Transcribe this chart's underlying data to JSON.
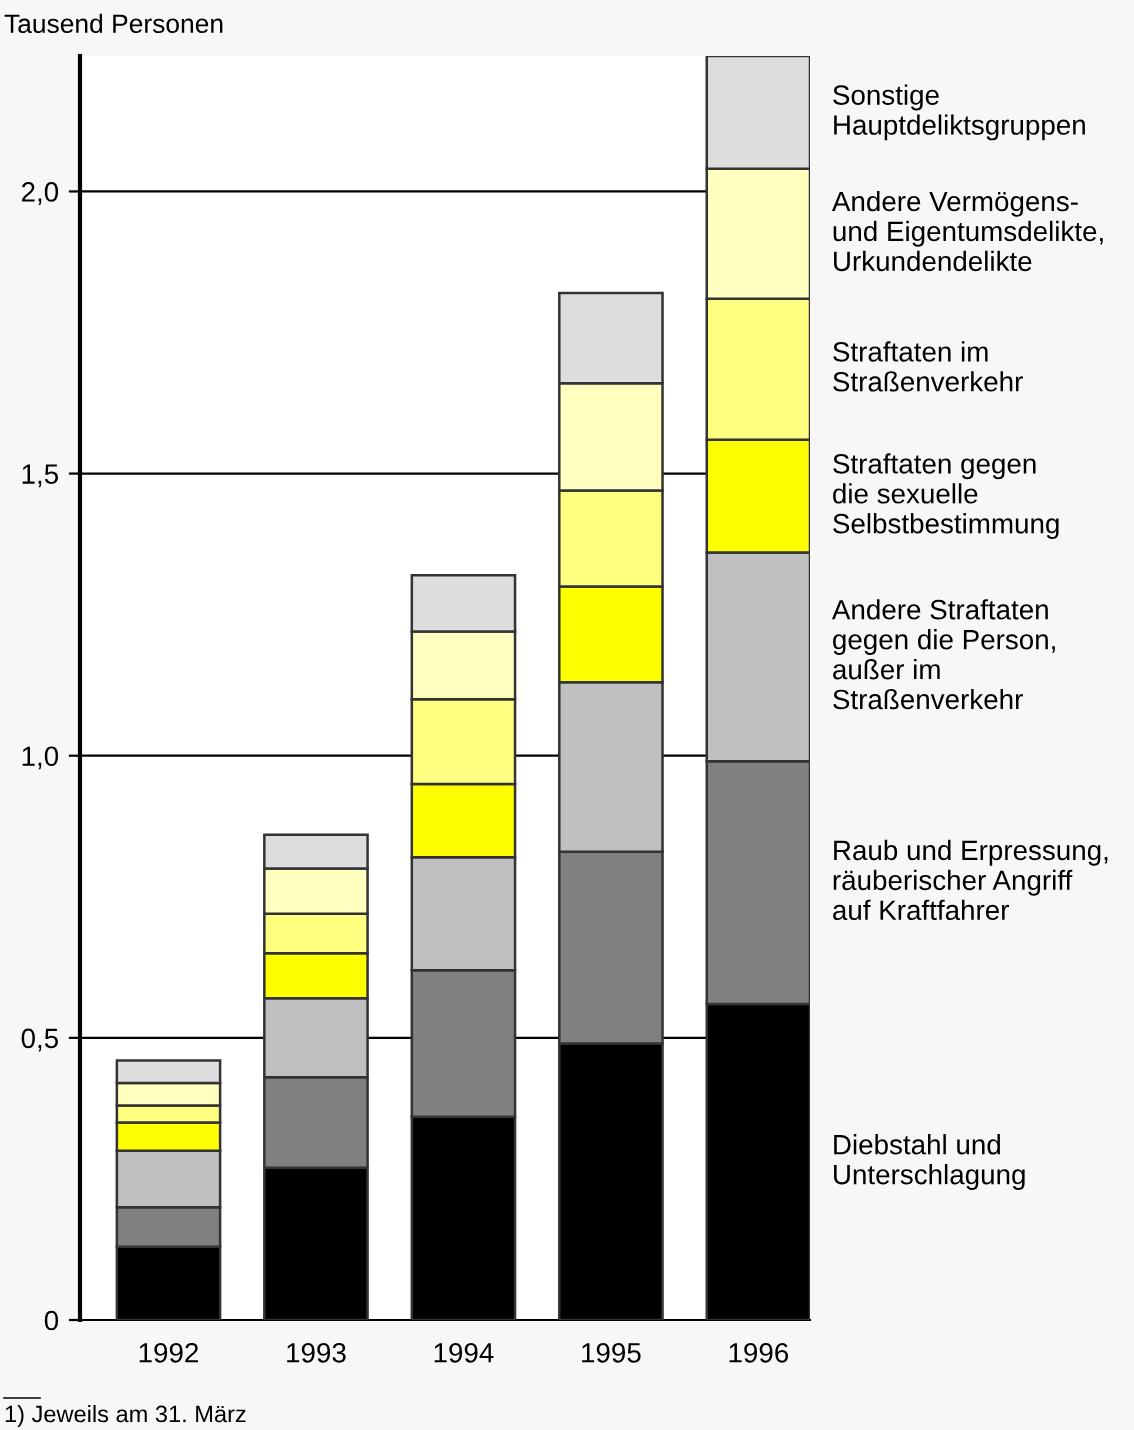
{
  "chart_data": {
    "type": "bar",
    "stacked": true,
    "ylabel": "Tausend Personen",
    "categories": [
      "1992",
      "1993",
      "1994",
      "1995",
      "1996"
    ],
    "series": [
      {
        "name": "Diebstahl und\nUnterschlagung",
        "color": "#000000",
        "values": [
          0.13,
          0.27,
          0.36,
          0.49,
          0.56
        ]
      },
      {
        "name": "Raub und Erpressung,\nräuberischer Angriff\nauf Kraftfahrer",
        "color": "#808080",
        "values": [
          0.07,
          0.16,
          0.26,
          0.34,
          0.43
        ]
      },
      {
        "name": "Andere Straftaten\ngegen die Person,\naußer im\nStraßenverkehr",
        "color": "#c0c0c0",
        "values": [
          0.1,
          0.14,
          0.2,
          0.3,
          0.37
        ]
      },
      {
        "name": "Straftaten gegen\ndie sexuelle\nSelbstbestimmung",
        "color": "#ffff00",
        "values": [
          0.05,
          0.08,
          0.13,
          0.17,
          0.2
        ]
      },
      {
        "name": "Straftaten im\nStraßenverkehr",
        "color": "#ffff80",
        "values": [
          0.03,
          0.07,
          0.15,
          0.17,
          0.25
        ]
      },
      {
        "name": "Andere Vermögens-\nund Eigentumsdelikte,\nUrkundendelikte",
        "color": "#ffffc0",
        "values": [
          0.04,
          0.08,
          0.12,
          0.19,
          0.23
        ]
      },
      {
        "name": "Sonstige\nHauptdeliktsgruppen",
        "color": "#dddddd",
        "values": [
          0.04,
          0.06,
          0.1,
          0.16,
          0.2
        ]
      }
    ],
    "ylim": [
      0,
      2.24
    ],
    "yticks": [
      0,
      {
        "value": 0.5,
        "label": "0,5"
      },
      {
        "value": 1.0,
        "label": "1,0"
      },
      {
        "value": 1.5,
        "label": "1,5"
      },
      {
        "value": 2.0,
        "label": "2,0"
      }
    ],
    "grid": "y",
    "legend": "right",
    "annotations": [
      "1) Jeweils am 31. März"
    ]
  }
}
